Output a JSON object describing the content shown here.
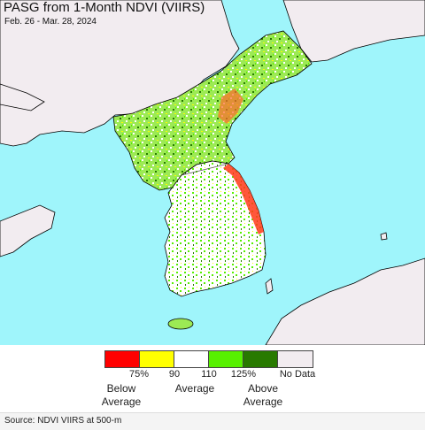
{
  "title": "PASG from 1-Month NDVI (VIIRS)",
  "date_range": "Feb. 26 - Mar. 28, 2024",
  "colors": {
    "water": "#9ff5fb",
    "land_outside": "#f2ecf0",
    "coast": "#000000",
    "below_75": "#ff0000",
    "range_75_90": "#ffff00",
    "range_90_110": "#ffffff",
    "range_110_125": "#57f000",
    "above_125": "#287a00",
    "no_data": "#f2ecf0"
  },
  "legend": {
    "ticks": [
      "75%",
      "90",
      "110",
      "125%",
      "No Data"
    ],
    "below_label": "Below\nAverage",
    "average_label": "Average",
    "above_label": "Above\nAverage",
    "swatch_colors": [
      "#ff0000",
      "#ffff00",
      "#ffffff",
      "#57f000",
      "#287a00",
      "#f2ecf0"
    ]
  },
  "source": "Source: NDVI VIIRS at 500-m"
}
